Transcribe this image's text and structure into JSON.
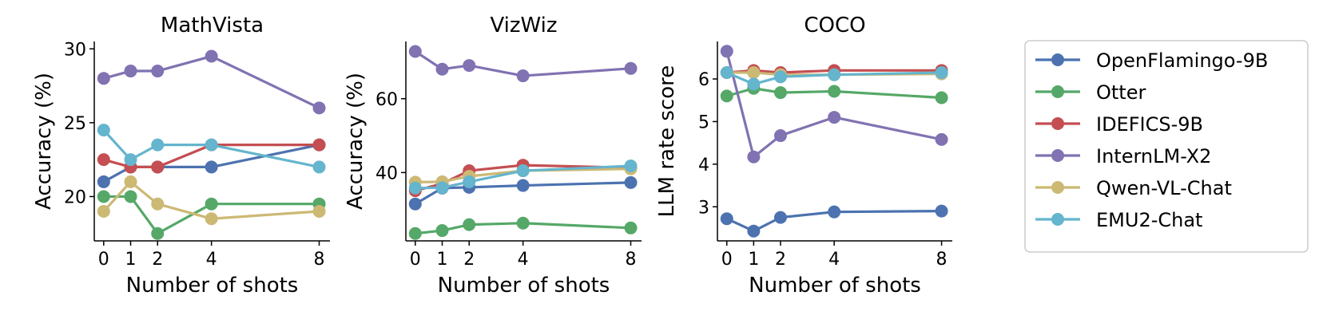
{
  "chart_data": [
    {
      "type": "line",
      "title": "MathVista",
      "xlabel": "Number of shots",
      "ylabel": "Accuracy (%)",
      "x": [
        0,
        1,
        2,
        4,
        8
      ],
      "xticks": [
        "0",
        "1",
        "2",
        "4",
        "8"
      ],
      "xlim": [
        -0.35,
        8.4
      ],
      "ylim": [
        17.0,
        30.5
      ],
      "yticks": [
        "20",
        "25",
        "30"
      ],
      "ytick_values": [
        20,
        25,
        30
      ],
      "series": [
        {
          "name": "OpenFlamingo-9B",
          "values": [
            21.0,
            22.0,
            22.0,
            22.0,
            23.5
          ]
        },
        {
          "name": "Otter",
          "values": [
            20.0,
            20.0,
            17.5,
            19.5,
            19.5
          ]
        },
        {
          "name": "IDEFICS-9B",
          "values": [
            22.5,
            22.0,
            22.0,
            23.5,
            23.5
          ]
        },
        {
          "name": "InternLM-X2",
          "values": [
            28.0,
            28.5,
            28.5,
            29.5,
            26.0
          ]
        },
        {
          "name": "Qwen-VL-Chat",
          "values": [
            19.0,
            21.0,
            19.5,
            18.5,
            19.0
          ]
        },
        {
          "name": "EMU2-Chat",
          "values": [
            24.5,
            22.5,
            23.5,
            23.5,
            22.0
          ]
        }
      ]
    },
    {
      "type": "line",
      "title": "VizWiz",
      "xlabel": "Number of shots",
      "ylabel": "Accuracy (%)",
      "x": [
        0,
        1,
        2,
        4,
        8
      ],
      "xticks": [
        "0",
        "1",
        "2",
        "4",
        "8"
      ],
      "xlim": [
        -0.35,
        8.4
      ],
      "ylim": [
        21.5,
        75.5
      ],
      "yticks": [
        "40",
        "60"
      ],
      "ytick_values": [
        40,
        60
      ],
      "series": [
        {
          "name": "OpenFlamingo-9B",
          "values": [
            31.5,
            35.8,
            36.0,
            36.5,
            37.3
          ]
        },
        {
          "name": "Otter",
          "values": [
            23.5,
            24.3,
            25.9,
            26.3,
            25.0
          ]
        },
        {
          "name": "IDEFICS-9B",
          "values": [
            35.1,
            37.0,
            40.5,
            42.0,
            41.3
          ]
        },
        {
          "name": "InternLM-X2",
          "values": [
            72.8,
            68.0,
            69.0,
            66.2,
            68.2
          ]
        },
        {
          "name": "Qwen-VL-Chat",
          "values": [
            37.4,
            37.5,
            39.0,
            40.5,
            41.0
          ]
        },
        {
          "name": "EMU2-Chat",
          "values": [
            35.8,
            35.9,
            37.5,
            40.5,
            41.8
          ]
        }
      ]
    },
    {
      "type": "line",
      "title": "COCO",
      "xlabel": "Number of shots",
      "ylabel": "LLM rate score",
      "x": [
        0,
        1,
        2,
        4,
        8
      ],
      "xticks": [
        "0",
        "1",
        "2",
        "4",
        "8"
      ],
      "xlim": [
        -0.35,
        8.4
      ],
      "ylim": [
        2.2,
        6.88
      ],
      "yticks": [
        "3",
        "4",
        "5",
        "6"
      ],
      "ytick_values": [
        3,
        4,
        5,
        6
      ],
      "series": [
        {
          "name": "OpenFlamingo-9B",
          "values": [
            2.72,
            2.43,
            2.75,
            2.88,
            2.9
          ]
        },
        {
          "name": "Otter",
          "values": [
            5.6,
            5.78,
            5.68,
            5.71,
            5.56
          ]
        },
        {
          "name": "IDEFICS-9B",
          "values": [
            6.15,
            6.2,
            6.15,
            6.2,
            6.2
          ]
        },
        {
          "name": "InternLM-X2",
          "values": [
            6.65,
            4.17,
            4.67,
            5.1,
            4.58
          ]
        },
        {
          "name": "Qwen-VL-Chat",
          "values": [
            6.15,
            6.15,
            6.1,
            6.1,
            6.12
          ]
        },
        {
          "name": "EMU2-Chat",
          "values": [
            6.15,
            5.88,
            6.05,
            6.1,
            6.15
          ]
        }
      ]
    }
  ],
  "legend": {
    "placement": "right",
    "entries": [
      {
        "name": "OpenFlamingo-9B",
        "color": "#4c72b0"
      },
      {
        "name": "Otter",
        "color": "#55a868"
      },
      {
        "name": "IDEFICS-9B",
        "color": "#c44e52"
      },
      {
        "name": "InternLM-X2",
        "color": "#8172b2"
      },
      {
        "name": "Qwen-VL-Chat",
        "color": "#ccb974"
      },
      {
        "name": "EMU2-Chat",
        "color": "#64b5cd"
      }
    ]
  },
  "colors": {
    "OpenFlamingo-9B": "#4c72b0",
    "Otter": "#55a868",
    "IDEFICS-9B": "#c44e52",
    "InternLM-X2": "#8172b2",
    "Qwen-VL-Chat": "#ccb974",
    "EMU2-Chat": "#64b5cd"
  }
}
